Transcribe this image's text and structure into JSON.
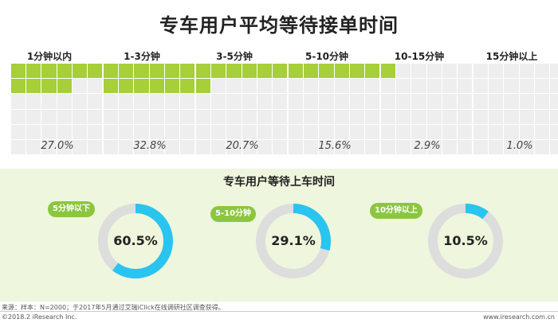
{
  "header": {
    "title": "专车用户平均等待接单时间"
  },
  "chart_data": [
    {
      "type": "waffle",
      "title": "专车用户平均等待接单时间",
      "categories": [
        "1分钟以内",
        "1-3分钟",
        "3-5分钟",
        "5-10分钟",
        "10-15分钟",
        "15分钟以上"
      ],
      "values": [
        27.0,
        32.8,
        20.7,
        15.6,
        2.9,
        1.0
      ],
      "value_labels": [
        "27.0%",
        "32.8%",
        "20.7%",
        "15.6%",
        "2.9%",
        "1.0%"
      ],
      "unit": "%",
      "grid_cells": 100,
      "colors": {
        "filled": "#a6cf39",
        "empty": "#eeeeee",
        "border": "#ffffff"
      }
    },
    {
      "type": "donut",
      "title": "专车用户等待上车时间",
      "categories": [
        "5分钟以下",
        "5-10分钟",
        "10分钟以上"
      ],
      "values": [
        60.5,
        29.1,
        10.5
      ],
      "value_labels": [
        "60.5%",
        "29.1%",
        "10.5%"
      ],
      "unit": "%",
      "colors": {
        "filled": "#29c4ef",
        "track": "#dddddd",
        "pill": "#8cc63f",
        "panel": "#eef6dd"
      }
    }
  ],
  "footer": {
    "source": "来源：样本：N=2000；于2017年5月通过艾瑞iClick在线调研社区调查获得。",
    "copyright": "©2018.2 iResearch Inc.",
    "url": "www.iresearch.com.cn"
  }
}
